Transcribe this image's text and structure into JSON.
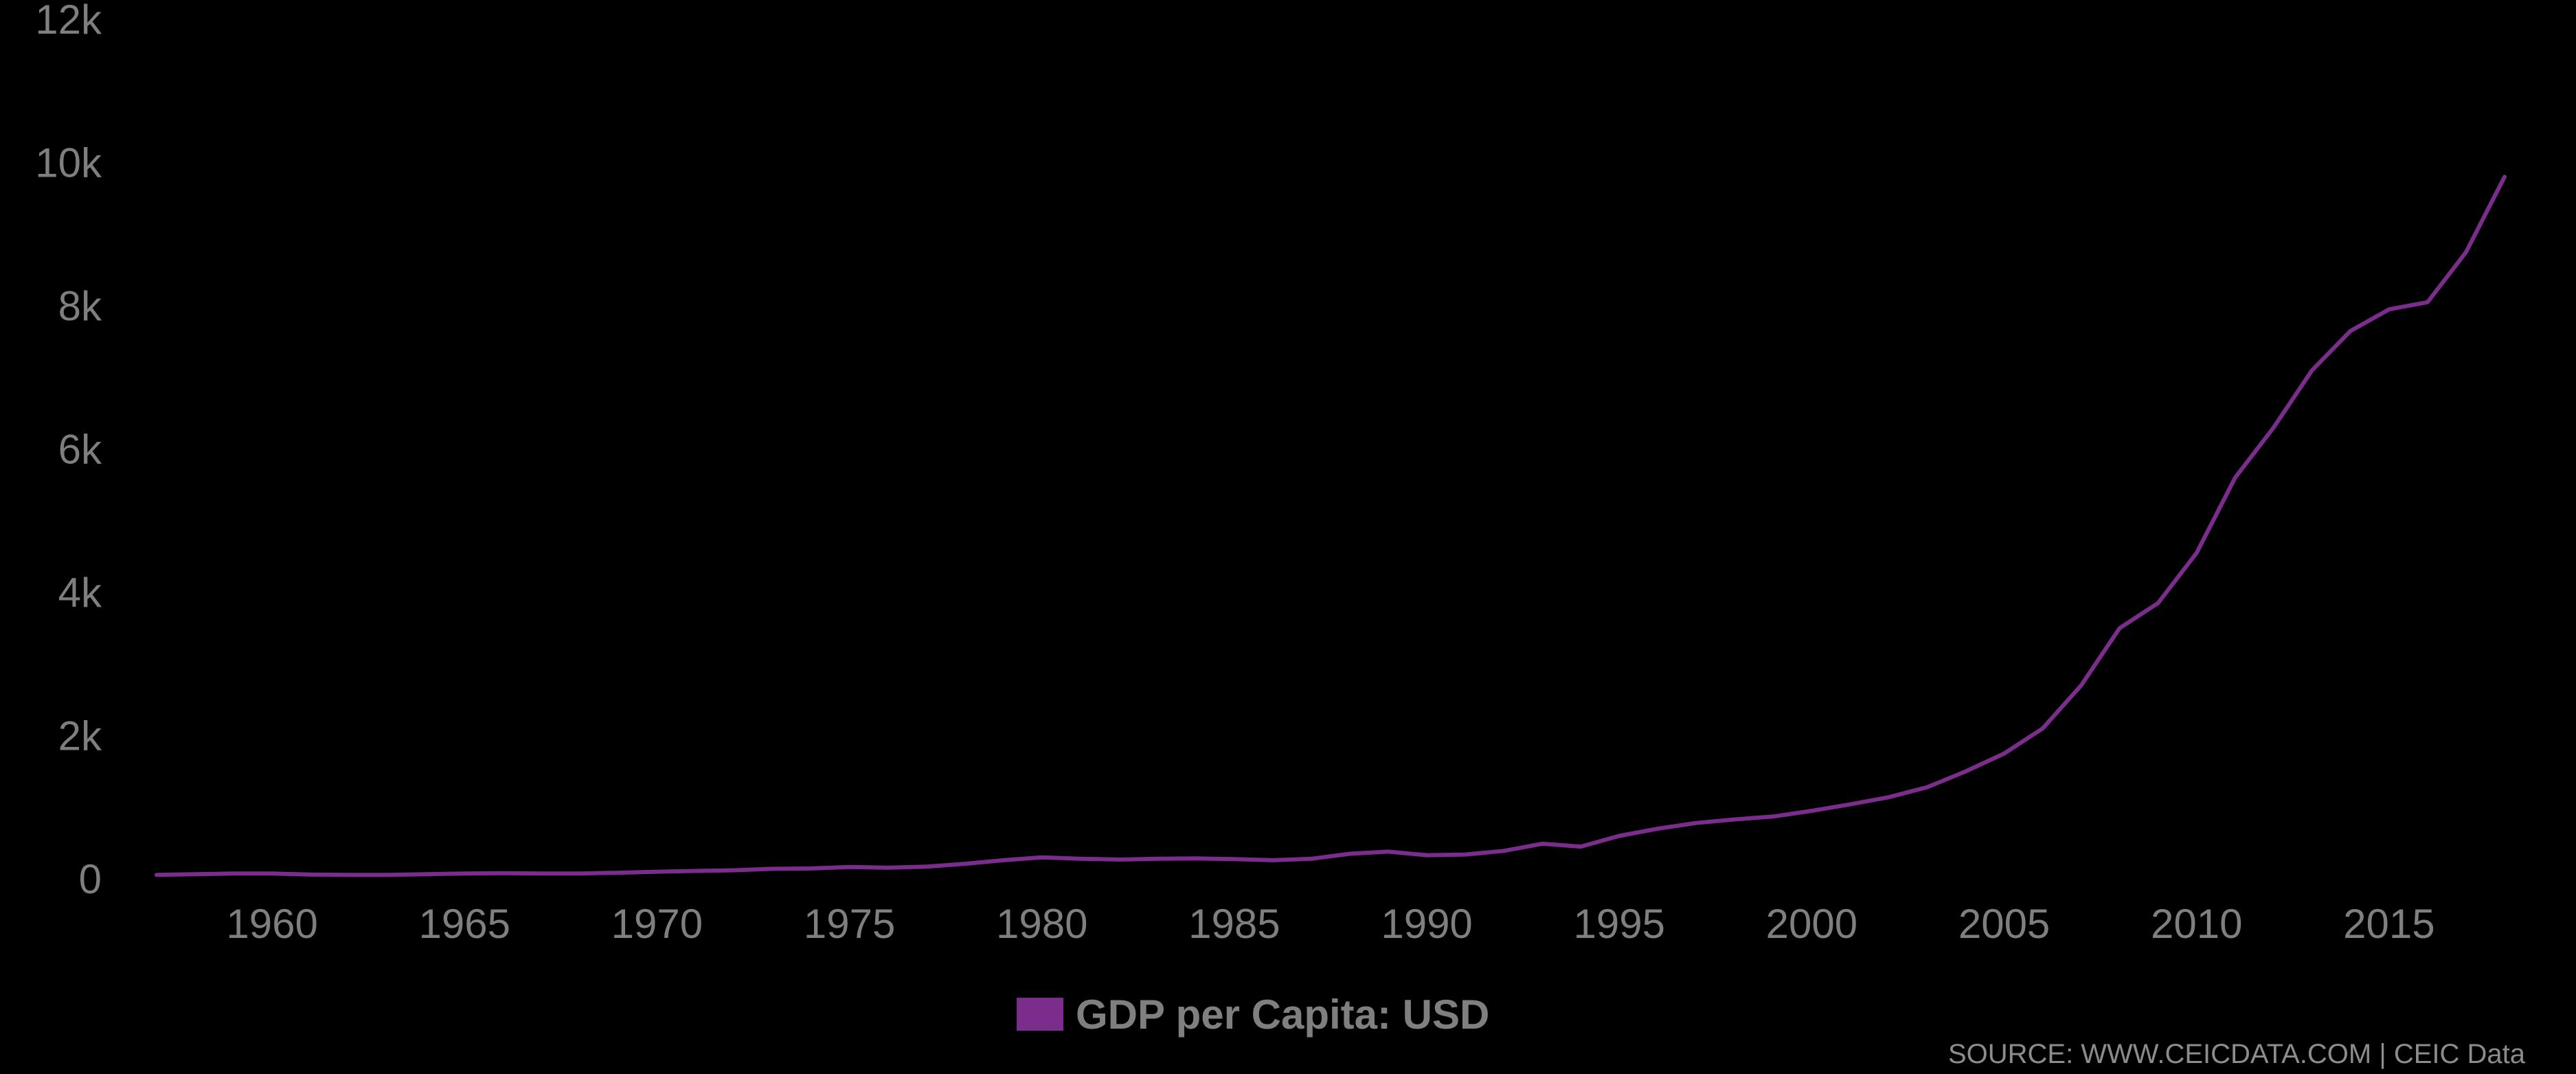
{
  "chart_data": {
    "type": "line",
    "title": "",
    "xlabel": "",
    "ylabel": "",
    "xlim": [
      1957,
      2018
    ],
    "ylim": [
      0,
      12000
    ],
    "grid": false,
    "legend_position": "bottom-center",
    "x_ticks": [
      {
        "value": 1960,
        "label": "1960"
      },
      {
        "value": 1965,
        "label": "1965"
      },
      {
        "value": 1970,
        "label": "1970"
      },
      {
        "value": 1975,
        "label": "1975"
      },
      {
        "value": 1980,
        "label": "1980"
      },
      {
        "value": 1985,
        "label": "1985"
      },
      {
        "value": 1990,
        "label": "1990"
      },
      {
        "value": 1995,
        "label": "1995"
      },
      {
        "value": 2000,
        "label": "2000"
      },
      {
        "value": 2005,
        "label": "2005"
      },
      {
        "value": 2010,
        "label": "2010"
      },
      {
        "value": 2015,
        "label": "2015"
      }
    ],
    "y_ticks": [
      {
        "value": 0,
        "label": "0"
      },
      {
        "value": 2000,
        "label": "2k"
      },
      {
        "value": 4000,
        "label": "4k"
      },
      {
        "value": 6000,
        "label": "6k"
      },
      {
        "value": 8000,
        "label": "8k"
      },
      {
        "value": 10000,
        "label": "10k"
      },
      {
        "value": 12000,
        "label": "12k"
      }
    ],
    "x": [
      1957,
      1958,
      1959,
      1960,
      1961,
      1962,
      1963,
      1964,
      1965,
      1966,
      1967,
      1968,
      1969,
      1970,
      1971,
      1972,
      1973,
      1974,
      1975,
      1976,
      1977,
      1978,
      1979,
      1980,
      1981,
      1982,
      1983,
      1984,
      1985,
      1986,
      1987,
      1988,
      1989,
      1990,
      1991,
      1992,
      1993,
      1994,
      1995,
      1996,
      1997,
      1998,
      1999,
      2000,
      2001,
      2002,
      2003,
      2004,
      2005,
      2006,
      2007,
      2008,
      2009,
      2010,
      2011,
      2012,
      2013,
      2014,
      2015,
      2016,
      2017,
      2018
    ],
    "series": [
      {
        "name": "GDP per Capita: USD",
        "color": "#7b2d8b",
        "values": [
          55,
          65,
          75,
          75,
          60,
          55,
          55,
          65,
          75,
          80,
          75,
          75,
          85,
          100,
          110,
          120,
          140,
          145,
          165,
          155,
          170,
          210,
          260,
          300,
          280,
          270,
          280,
          285,
          275,
          260,
          280,
          350,
          380,
          330,
          340,
          390,
          490,
          450,
          600,
          700,
          780,
          830,
          870,
          950,
          1040,
          1140,
          1280,
          1500,
          1750,
          2100,
          2700,
          3500,
          3850,
          4550,
          5600,
          6300,
          7100,
          7650,
          7950,
          8050,
          8750,
          9800
        ]
      }
    ]
  },
  "legend": {
    "label": "GDP per Capita: USD",
    "swatch_color": "#7b2d8b"
  },
  "source": {
    "text": "SOURCE: WWW.CEICDATA.COM | CEIC Data"
  },
  "colors": {
    "background": "#000000",
    "axis_text": "#7f7f7f",
    "line": "#7b2d8b"
  }
}
